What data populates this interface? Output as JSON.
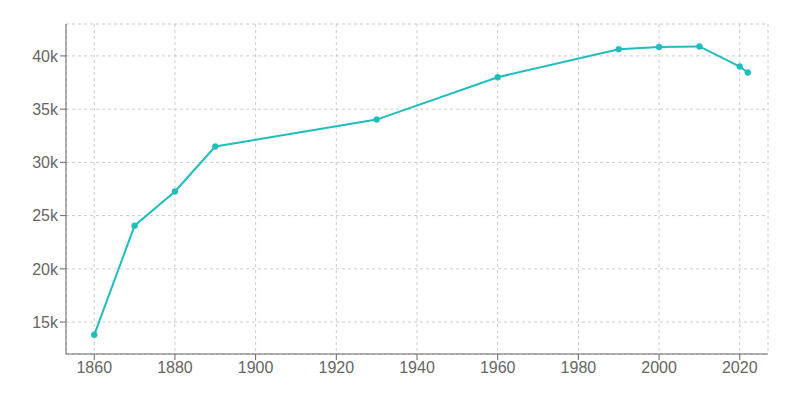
{
  "chart_data": {
    "type": "line",
    "x": [
      1860,
      1870,
      1880,
      1890,
      1930,
      1960,
      1990,
      2000,
      2010,
      2020,
      2022
    ],
    "values": [
      13800,
      24052,
      27268,
      31494,
      34020,
      38000,
      40633,
      40843,
      40896,
      39000,
      38440
    ],
    "color": "#20BDBD",
    "marker": "o",
    "xlim": [
      1853,
      2027
    ],
    "ylim": [
      12000,
      43000
    ],
    "xticks": [
      1860,
      1880,
      1900,
      1920,
      1940,
      1960,
      1980,
      2000,
      2020
    ],
    "yticks": [
      {
        "value": 15000,
        "label": "15k"
      },
      {
        "value": 20000,
        "label": "20k"
      },
      {
        "value": 25000,
        "label": "25k"
      },
      {
        "value": 30000,
        "label": "30k"
      },
      {
        "value": 35000,
        "label": "35k"
      },
      {
        "value": 40000,
        "label": "40k"
      }
    ],
    "grid": true
  }
}
